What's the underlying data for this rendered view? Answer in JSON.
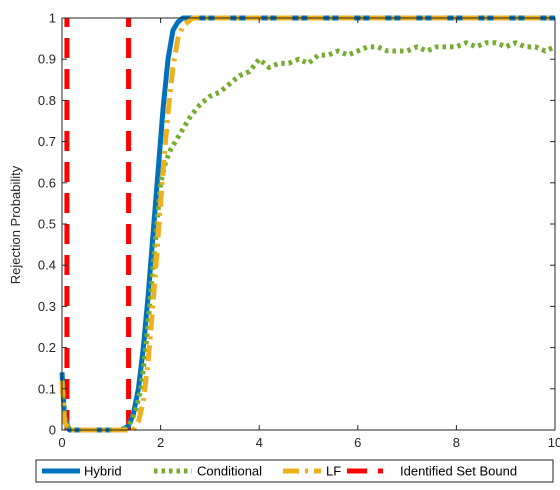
{
  "chart_data": {
    "type": "line",
    "title": "",
    "xlabel": "",
    "ylabel": "Rejection Probability",
    "xlim": [
      0,
      10
    ],
    "ylim": [
      0,
      1
    ],
    "xticks": [
      0,
      2,
      4,
      6,
      8,
      10
    ],
    "xtick_labels": [
      "0",
      "2",
      "4",
      "6",
      "8",
      "10"
    ],
    "yticks": [
      0,
      0.1,
      0.2,
      0.3,
      0.4,
      0.5,
      0.6,
      0.7,
      0.8,
      0.9,
      1
    ],
    "ytick_labels": [
      "0",
      "0.1",
      "0.2",
      "0.3",
      "0.4",
      "0.5",
      "0.6",
      "0.7",
      "0.8",
      "0.9",
      "1"
    ],
    "grid": false,
    "legend_position": "bottom",
    "series": [
      {
        "name": "Hybrid",
        "color": "#0072BD",
        "style": "solid",
        "x": [
          0,
          0.05,
          0.15,
          0.3,
          1.2,
          1.35,
          1.45,
          1.55,
          1.65,
          1.75,
          1.85,
          1.95,
          2.05,
          2.15,
          2.25,
          2.35,
          2.45,
          2.55,
          3,
          5,
          10
        ],
        "y": [
          0.14,
          0.03,
          0,
          0,
          0,
          0.01,
          0.04,
          0.1,
          0.2,
          0.33,
          0.48,
          0.63,
          0.78,
          0.9,
          0.97,
          0.99,
          1,
          1,
          1,
          1,
          1
        ]
      },
      {
        "name": "Conditional",
        "color": "#77AC30",
        "style": "dotted",
        "x": [
          0,
          0.05,
          0.15,
          1.25,
          1.4,
          1.5,
          1.6,
          1.7,
          1.8,
          1.9,
          2.0,
          2.1,
          2.2,
          2.4,
          2.6,
          2.8,
          3.0,
          3.2,
          3.4,
          3.6,
          3.8,
          4.0,
          4.2,
          4.4,
          4.6,
          4.8,
          5.0,
          5.2,
          5.4,
          5.6,
          5.8,
          6.0,
          6.2,
          6.4,
          6.6,
          6.8,
          7.0,
          7.2,
          7.4,
          7.6,
          7.8,
          8.0,
          8.2,
          8.4,
          8.6,
          8.8,
          9.0,
          9.2,
          9.4,
          9.6,
          9.8,
          10.0
        ],
        "y": [
          0.12,
          0.03,
          0,
          0,
          0.02,
          0.05,
          0.1,
          0.2,
          0.33,
          0.47,
          0.6,
          0.65,
          0.68,
          0.72,
          0.76,
          0.79,
          0.81,
          0.82,
          0.84,
          0.86,
          0.87,
          0.9,
          0.88,
          0.89,
          0.89,
          0.9,
          0.89,
          0.91,
          0.91,
          0.92,
          0.91,
          0.92,
          0.93,
          0.93,
          0.92,
          0.92,
          0.92,
          0.93,
          0.92,
          0.93,
          0.93,
          0.93,
          0.94,
          0.93,
          0.94,
          0.94,
          0.93,
          0.94,
          0.93,
          0.93,
          0.92,
          0.93
        ]
      },
      {
        "name": "LF",
        "color": "#EDB120",
        "style": "dash-dot",
        "x": [
          0,
          0.05,
          0.15,
          1.45,
          1.55,
          1.65,
          1.75,
          1.85,
          1.95,
          2.05,
          2.15,
          2.25,
          2.35,
          2.45,
          2.55,
          2.65,
          3,
          5,
          10
        ],
        "y": [
          0.12,
          0.02,
          0,
          0,
          0.02,
          0.07,
          0.17,
          0.31,
          0.47,
          0.63,
          0.77,
          0.88,
          0.95,
          0.98,
          0.99,
          1,
          1,
          1,
          1
        ]
      },
      {
        "name": "Identified Set Bound",
        "color": "#FF0000",
        "style": "dashed",
        "segments": [
          {
            "x": [
              0.1,
              0.1
            ],
            "y": [
              0,
              1
            ]
          },
          {
            "x": [
              1.35,
              1.35
            ],
            "y": [
              0,
              1
            ]
          }
        ]
      }
    ]
  }
}
